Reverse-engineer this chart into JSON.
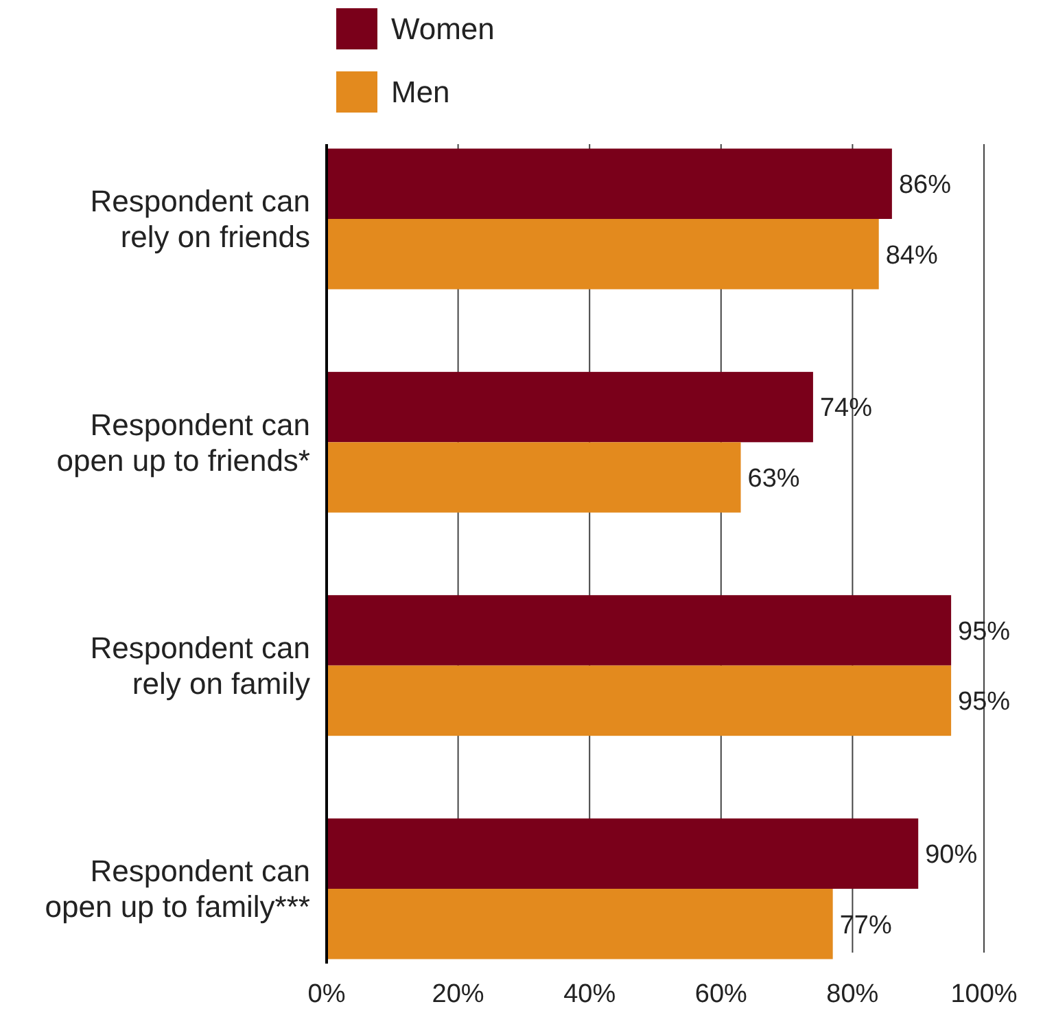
{
  "chart_data": {
    "type": "bar",
    "orientation": "horizontal",
    "categories": [
      "Respondent can\nrely on friends",
      "Respondent can\nopen up to friends*",
      "Respondent can\nrely on family",
      "Respondent can\nopen up to family***"
    ],
    "series": [
      {
        "name": "Women",
        "color": "#7a001a",
        "values": [
          86,
          74,
          95,
          90
        ],
        "value_labels": [
          "86%",
          "74%",
          "95%",
          "90%"
        ]
      },
      {
        "name": "Men",
        "color": "#e38a1e",
        "values": [
          84,
          63,
          95,
          77
        ],
        "value_labels": [
          "84%",
          "63%",
          "95%",
          "77%"
        ]
      }
    ],
    "xlim": [
      0,
      100
    ],
    "xticks": [
      {
        "value": 0,
        "label": "0%"
      },
      {
        "value": 20,
        "label": "20%"
      },
      {
        "value": 40,
        "label": "40%"
      },
      {
        "value": 60,
        "label": "60%"
      },
      {
        "value": 80,
        "label": "80%"
      },
      {
        "value": 100,
        "label": "100%"
      }
    ],
    "grid": "x",
    "legend": "top"
  }
}
